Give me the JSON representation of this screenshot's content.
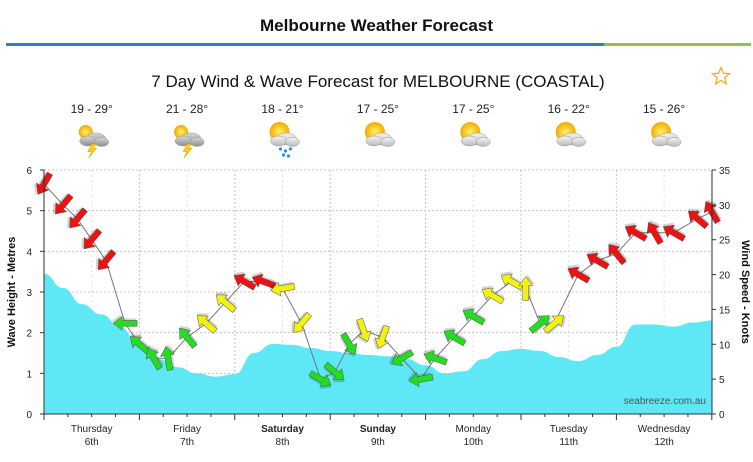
{
  "page": {
    "title": "Melbourne Weather Forecast"
  },
  "icons": {
    "favourite": "star-outline-icon"
  },
  "colors": {
    "wave_fill": "#5ee7f5",
    "wind_light": "#22dd22",
    "wind_moderate": "#f2f212",
    "wind_strong": "#ee1111",
    "header_rule_blue": "#2f7fc1",
    "header_rule_green": "#8cc63f"
  },
  "chart_data": {
    "type": "area",
    "title": "7 Day Wind & Wave Forecast for MELBOURNE (COASTAL)",
    "credit": "seabreeze.com.au",
    "ylabel": "Wave Height - Metres",
    "y2label": "Wind Speed - Knots",
    "ylim": [
      0,
      6
    ],
    "y2lim": [
      0,
      35
    ],
    "yticks": [
      0,
      1,
      2,
      3,
      4,
      5,
      6
    ],
    "y2ticks": [
      0,
      5,
      10,
      15,
      20,
      25,
      30,
      35
    ],
    "grid": true,
    "days": [
      {
        "weekday": "Thursday",
        "date": "6th",
        "bold": false,
        "temp": "19 - 29°",
        "icon": "storm-icon"
      },
      {
        "weekday": "Friday",
        "date": "7th",
        "bold": false,
        "temp": "21 - 28°",
        "icon": "storm-icon"
      },
      {
        "weekday": "Saturday",
        "date": "8th",
        "bold": true,
        "temp": "18 - 21°",
        "icon": "sun-cloud-rain-icon"
      },
      {
        "weekday": "Sunday",
        "date": "9th",
        "bold": true,
        "temp": "17 - 25°",
        "icon": "partly-cloudy-icon"
      },
      {
        "weekday": "Monday",
        "date": "10th",
        "bold": false,
        "temp": "17 - 25°",
        "icon": "partly-cloudy-icon"
      },
      {
        "weekday": "Tuesday",
        "date": "11th",
        "bold": false,
        "temp": "16 - 22°",
        "icon": "partly-cloudy-icon"
      },
      {
        "weekday": "Wednesday",
        "date": "12th",
        "bold": false,
        "temp": "15 - 26°",
        "icon": "partly-cloudy-icon"
      }
    ],
    "wave_series": {
      "name": "Wave Height",
      "x": [
        0,
        0.2,
        0.4,
        0.6,
        0.8,
        1.0,
        1.2,
        1.4,
        1.6,
        1.8,
        2.0,
        2.2,
        2.4,
        2.6,
        2.8,
        3.0,
        3.2,
        3.4,
        3.6,
        3.8,
        4.0,
        4.2,
        4.4,
        4.6,
        4.8,
        5.0,
        5.2,
        5.4,
        5.6,
        5.8,
        6.0,
        6.2,
        6.4,
        6.6,
        6.8,
        7.0
      ],
      "values": [
        3.45,
        3.1,
        2.7,
        2.45,
        2.15,
        1.65,
        1.35,
        1.15,
        1.0,
        0.92,
        0.98,
        1.5,
        1.72,
        1.7,
        1.62,
        1.55,
        1.5,
        1.45,
        1.42,
        1.35,
        1.2,
        1.0,
        1.05,
        1.35,
        1.55,
        1.6,
        1.55,
        1.4,
        1.3,
        1.45,
        1.65,
        2.2,
        2.2,
        2.15,
        2.25,
        2.3
      ]
    },
    "wind_series": {
      "name": "Wind Speed",
      "x": [
        0.0,
        0.2,
        0.35,
        0.5,
        0.65,
        0.85,
        1.0,
        1.15,
        1.3,
        1.5,
        1.7,
        1.9,
        2.1,
        2.3,
        2.5,
        2.7,
        2.9,
        3.05,
        3.2,
        3.35,
        3.55,
        3.75,
        3.95,
        4.1,
        4.3,
        4.5,
        4.7,
        4.9,
        5.05,
        5.2,
        5.35,
        5.6,
        5.8,
        6.0,
        6.2,
        6.4,
        6.6,
        6.85,
        7.0
      ],
      "values": [
        33.0,
        30.0,
        28.0,
        25.0,
        22.0,
        13.0,
        10.0,
        8.0,
        8.0,
        11.0,
        13.0,
        16.0,
        19.0,
        19.0,
        18.0,
        13.0,
        5.0,
        6.0,
        10.0,
        12.0,
        11.0,
        8.0,
        5.0,
        8.0,
        11.0,
        14.0,
        17.0,
        19.0,
        18.0,
        13.0,
        13.0,
        20.0,
        22.0,
        23.0,
        26.0,
        26.0,
        26.0,
        28.0,
        29.0
      ],
      "direction_deg": [
        120,
        130,
        130,
        130,
        130,
        180,
        220,
        240,
        260,
        230,
        220,
        220,
        210,
        200,
        170,
        130,
        30,
        40,
        60,
        70,
        110,
        150,
        170,
        200,
        210,
        210,
        210,
        210,
        270,
        320,
        320,
        210,
        210,
        230,
        210,
        240,
        210,
        220,
        240
      ],
      "color_levels": [
        "red",
        "red",
        "red",
        "red",
        "red",
        "green",
        "green",
        "green",
        "green",
        "green",
        "yellow",
        "yellow",
        "red",
        "red",
        "yellow",
        "yellow",
        "green",
        "green",
        "green",
        "yellow",
        "yellow",
        "green",
        "green",
        "green",
        "green",
        "green",
        "yellow",
        "yellow",
        "yellow",
        "green",
        "yellow",
        "red",
        "red",
        "red",
        "red",
        "red",
        "red",
        "red",
        "red"
      ]
    }
  }
}
